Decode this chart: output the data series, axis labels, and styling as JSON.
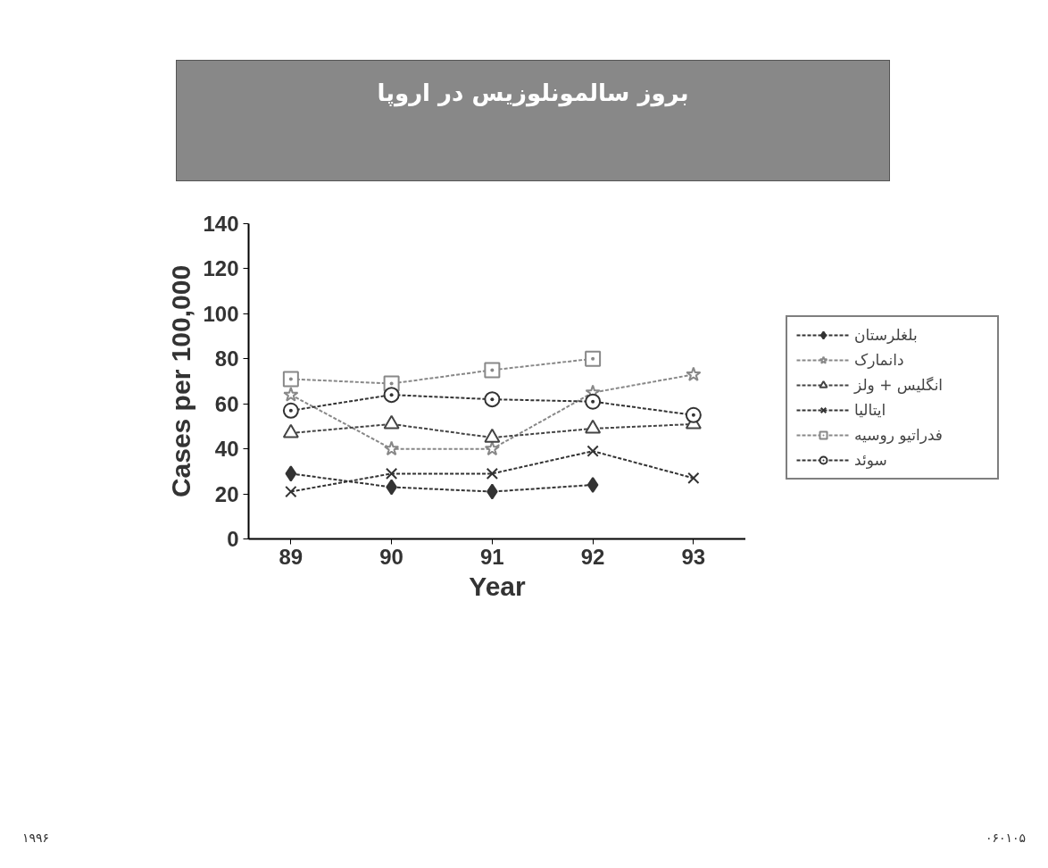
{
  "chart_data": {
    "type": "line",
    "title": "بروز سالمونلوزیس در اروپا",
    "xlabel": "Year",
    "ylabel": "Cases per 100,000",
    "x": [
      89,
      90,
      91,
      92,
      93
    ],
    "xlim": [
      88.58,
      93.52
    ],
    "xticks": [
      89,
      90,
      91,
      92,
      93
    ],
    "ylim": [
      0,
      140
    ],
    "yticks": [
      0,
      20,
      40,
      60,
      80,
      100,
      120,
      140
    ],
    "grid": false,
    "legend": "right",
    "line_style": "dashed",
    "series": [
      {
        "name": "بلغلرستان",
        "color": "#333333",
        "marker": "diamond",
        "values": [
          29,
          23,
          21,
          24,
          null
        ]
      },
      {
        "name": "دانمارک",
        "color": "#888888",
        "marker": "star",
        "values": [
          64,
          40,
          40,
          65,
          73
        ]
      },
      {
        "name": "انگلیس + ولز",
        "color": "#444444",
        "marker": "triangle",
        "values": [
          47,
          51,
          45,
          49,
          51
        ]
      },
      {
        "name": "ایتالیا",
        "color": "#333333",
        "marker": "cross",
        "values": [
          21,
          29,
          29,
          39,
          27
        ]
      },
      {
        "name": "فدراتیو روسیه",
        "color": "#888888",
        "marker": "square",
        "values": [
          71,
          69,
          75,
          80,
          null
        ]
      },
      {
        "name": "سوئد",
        "color": "#333333",
        "marker": "circle",
        "values": [
          57,
          64,
          62,
          61,
          55
        ]
      }
    ],
    "annotations": [
      "۱۹۹۶",
      "۰۶۰۱۰۵"
    ]
  }
}
